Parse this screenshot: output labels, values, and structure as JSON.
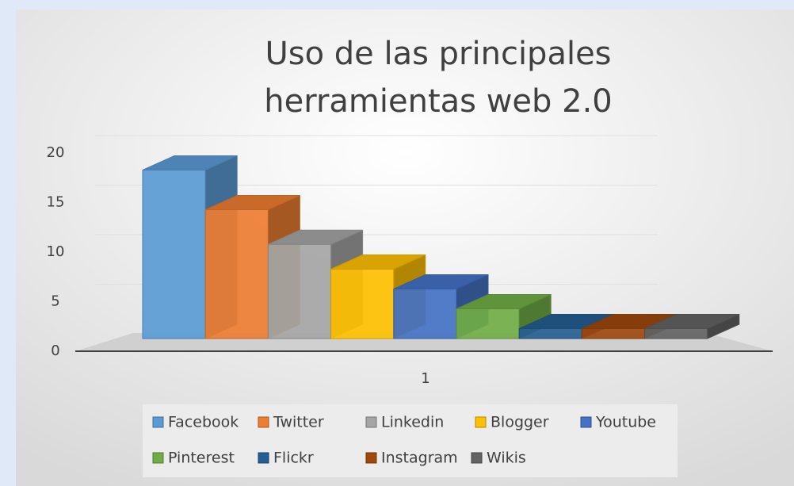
{
  "chart_data": {
    "type": "bar3d",
    "title": "Uso de las principales herramientas web 2.0",
    "categories": [
      "1"
    ],
    "series": [
      {
        "name": "Facebook",
        "color": "#5b9bd5",
        "values": [
          17
        ]
      },
      {
        "name": "Twitter",
        "color": "#ed7d31",
        "values": [
          13
        ]
      },
      {
        "name": "Linkedin",
        "color": "#a5a5a5",
        "values": [
          9.5
        ]
      },
      {
        "name": "Blogger",
        "color": "#ffc000",
        "values": [
          7
        ]
      },
      {
        "name": "Youtube",
        "color": "#4472c4",
        "values": [
          5
        ]
      },
      {
        "name": "Pinterest",
        "color": "#70ad47",
        "values": [
          3
        ]
      },
      {
        "name": "Flickr",
        "color": "#255e91",
        "values": [
          1
        ]
      },
      {
        "name": "Instagram",
        "color": "#9e480e",
        "values": [
          1
        ]
      },
      {
        "name": "Wikis",
        "color": "#636363",
        "values": [
          1
        ]
      }
    ],
    "ylim": [
      0,
      20
    ],
    "yticks": [
      0,
      5,
      10,
      15,
      20
    ],
    "grid": true,
    "legend": "bottom"
  }
}
